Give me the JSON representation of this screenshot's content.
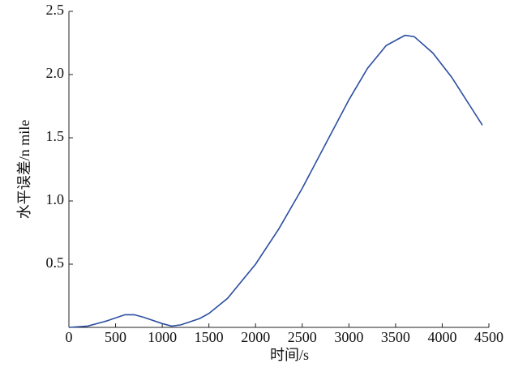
{
  "chart_data": {
    "type": "line",
    "xlabel": "时间/s",
    "ylabel": "水平误差/n mile",
    "series": [
      {
        "color": "#2b4ea0",
        "x": [
          0,
          200,
          400,
          600,
          700,
          800,
          1000,
          1100,
          1200,
          1400,
          1500,
          1700,
          2000,
          2250,
          2500,
          2750,
          3000,
          3200,
          3400,
          3600,
          3700,
          3900,
          4100,
          4300,
          4430
        ],
        "values": [
          0,
          0.01,
          0.05,
          0.1,
          0.1,
          0.08,
          0.03,
          0.01,
          0.02,
          0.07,
          0.11,
          0.23,
          0.5,
          0.78,
          1.1,
          1.45,
          1.8,
          2.05,
          2.23,
          2.31,
          2.3,
          2.17,
          1.98,
          1.75,
          1.6
        ]
      }
    ],
    "xlim": [
      0,
      4500
    ],
    "ylim": [
      0,
      2.5
    ],
    "xticks": [
      0,
      500,
      1000,
      1500,
      2000,
      2500,
      3000,
      3500,
      4000,
      4500
    ],
    "yticks": [
      0.5,
      {
        "value": 1,
        "label": "1.0"
      },
      1.5,
      {
        "value": 2,
        "label": "2.0"
      },
      2.5
    ]
  }
}
